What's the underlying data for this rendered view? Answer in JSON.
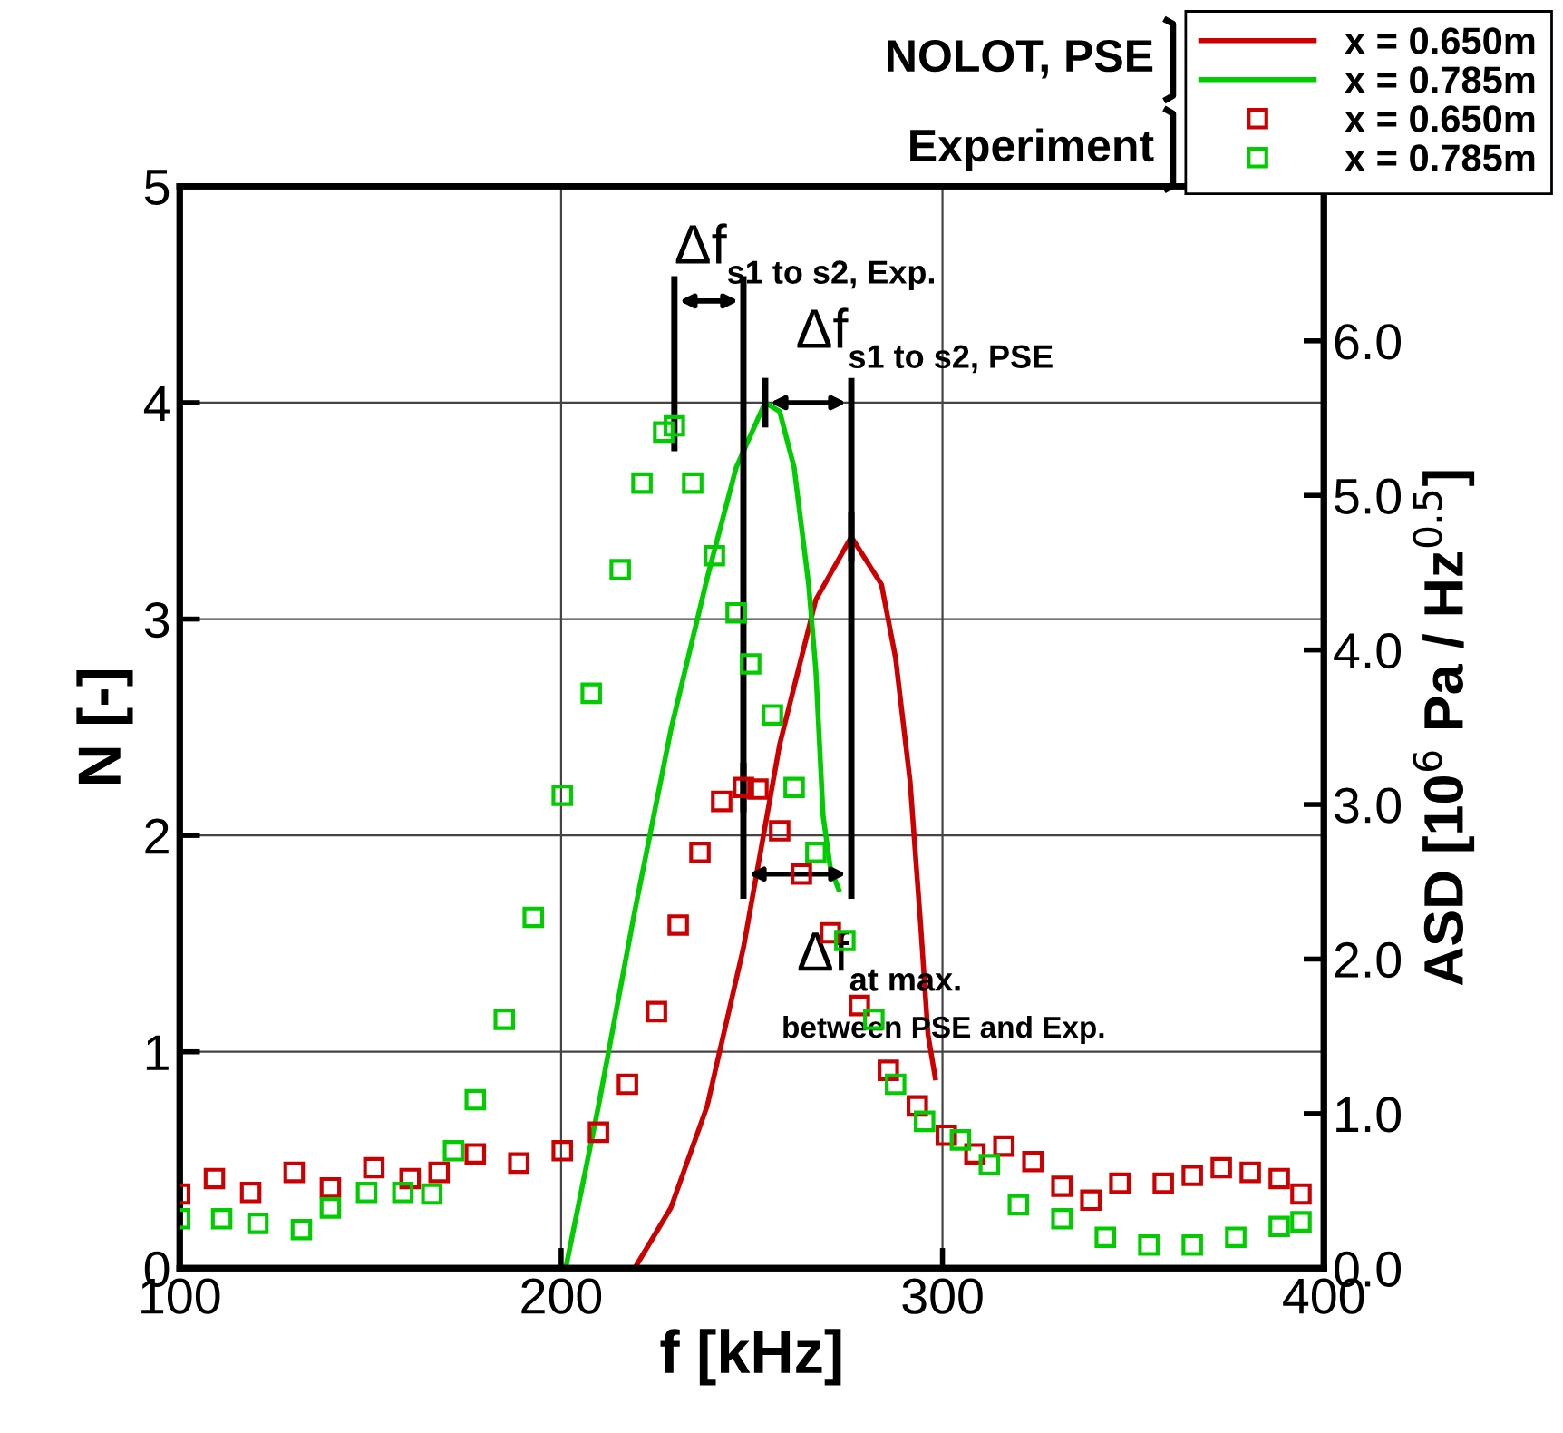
{
  "chart_data": {
    "type": "line",
    "xlabel": "f [kHz]",
    "ylabel": "N [-]",
    "y2label": "ASD [10$^{6}$ Pa / Hz$^{0.5}$]",
    "xlim": [
      100,
      400
    ],
    "xticks": [
      100,
      200,
      300,
      400
    ],
    "ylim": [
      0,
      5
    ],
    "yticks": [
      0,
      1,
      2,
      3,
      4,
      5
    ],
    "y2lim": [
      0,
      7
    ],
    "y2ticks": [
      {
        "value": 0,
        "label": "0.0"
      },
      {
        "value": 1,
        "label": "1.0"
      },
      {
        "value": 2,
        "label": "2.0"
      },
      {
        "value": 3,
        "label": "3.0"
      },
      {
        "value": 4,
        "label": "4.0"
      },
      {
        "value": 5,
        "label": "5.0"
      },
      {
        "value": 6,
        "label": "6.0"
      }
    ],
    "grid": true,
    "legend": "top right",
    "series": [
      {
        "name": "x = 0.650m",
        "color": "#cc0000",
        "type": "scatter",
        "marker": "square",
        "axis": "y2",
        "x": [
          100,
          109.1,
          118.6,
          130,
          139.5,
          150.9,
          160.4,
          168,
          177.5,
          188.9,
          200.3,
          209.8,
          217.4,
          225,
          230.7,
          236.4,
          242.1,
          247.8,
          251.6,
          257.3,
          263,
          270.6,
          278.2,
          285.8,
          293.4,
          301,
          308.5,
          316.1,
          323.7,
          331.3,
          338.9,
          346.5,
          357.9,
          365.5,
          373.1,
          380.7,
          388.3,
          394
        ],
        "values": [
          0.48,
          0.58,
          0.49,
          0.62,
          0.52,
          0.65,
          0.58,
          0.62,
          0.74,
          0.68,
          0.76,
          0.88,
          1.19,
          1.66,
          2.22,
          2.69,
          3.02,
          3.11,
          3.1,
          2.83,
          2.55,
          2.17,
          1.7,
          1.28,
          1.05,
          0.86,
          0.74,
          0.79,
          0.69,
          0.53,
          0.44,
          0.55,
          0.55,
          0.6,
          0.65,
          0.62,
          0.58,
          0.48
        ]
      },
      {
        "name": "x = 0.785m",
        "color": "#00cc00",
        "type": "scatter",
        "marker": "square",
        "axis": "y2",
        "x": [
          100,
          111,
          120.5,
          131.9,
          139.5,
          149,
          158.5,
          166.1,
          171.8,
          177.5,
          185.1,
          192.7,
          200.3,
          207.9,
          215.5,
          221.2,
          226.9,
          229.7,
          234.5,
          240.2,
          245.9,
          249.7,
          255.4,
          261.1,
          266.8,
          274.4,
          282,
          287.7,
          295.3,
          304.7,
          312.3,
          319.9,
          331.3,
          342.7,
          354.1,
          365.5,
          376.9,
          388.3,
          394
        ],
        "values": [
          0.32,
          0.32,
          0.29,
          0.25,
          0.39,
          0.49,
          0.49,
          0.48,
          0.76,
          1.09,
          1.61,
          2.27,
          3.06,
          3.72,
          4.52,
          5.08,
          5.41,
          5.45,
          5.08,
          4.61,
          4.24,
          3.91,
          3.58,
          3.11,
          2.69,
          2.12,
          1.61,
          1.19,
          0.95,
          0.83,
          0.67,
          0.41,
          0.32,
          0.2,
          0.15,
          0.15,
          0.2,
          0.27,
          0.3
        ]
      },
      {
        "name": "x = 0.650m",
        "color": "#cc0000",
        "marker": "none",
        "x": [
          219.3,
          228.8,
          238.3,
          247.8,
          257.3,
          266.8,
          276.1,
          284,
          287.7,
          291.5,
          294.3,
          296.2,
          298.1
        ],
        "values": [
          0,
          0.28,
          0.75,
          1.48,
          2.42,
          3.09,
          3.38,
          3.16,
          2.82,
          2.25,
          1.58,
          1.08,
          0.88
        ]
      },
      {
        "name": "x = 0.785m",
        "color": "#00cc00",
        "marker": "none",
        "x": [
          201.2,
          209.8,
          219.3,
          228.8,
          238.3,
          245.9,
          253.5,
          257.3,
          261.1,
          264.9,
          266.8,
          268.7,
          270.6,
          272.8
        ],
        "values": [
          0,
          0.75,
          1.65,
          2.49,
          3.19,
          3.7,
          4.0,
          3.96,
          3.7,
          3.16,
          2.76,
          2.09,
          1.85,
          1.75
        ]
      }
    ],
    "annotations": [
      {
        "text": "Δf$_{s1 to s2, Exp.}$",
        "x": 229.7,
        "y": 3.89
      },
      {
        "text": "Δf$_{s1 to s2, PSE}$",
        "x": 253.5,
        "y": 4.0
      },
      "Δf$_{at max.}$",
      "between PSE and Exp.",
      "NOLOT, PSE",
      "Experiment"
    ]
  }
}
